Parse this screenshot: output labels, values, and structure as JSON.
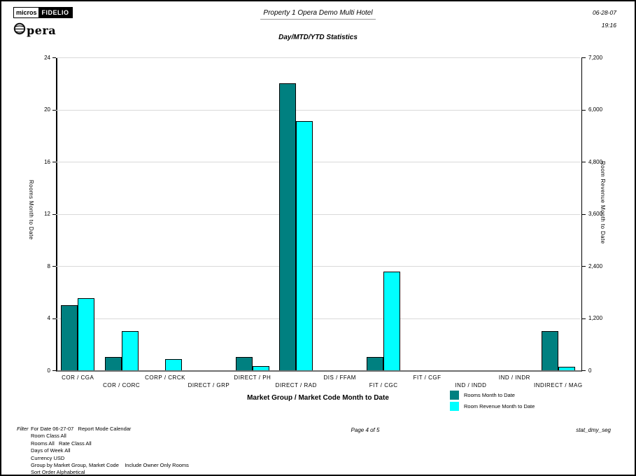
{
  "header": {
    "logo_micros": "micros",
    "logo_fidelio": "FIDELIO",
    "logo_opera": "pera",
    "title": "Property 1 Opera Demo Multi Hotel",
    "subtitle": "Day/MTD/YTD Statistics",
    "date": "06-28-07",
    "time": "19:16"
  },
  "chart_data": {
    "type": "bar",
    "title": "Day/MTD/YTD Statistics",
    "categories": [
      "COR / CGA",
      "COR / CORC",
      "CORP / CRCK",
      "DIRECT / GRP",
      "DIRECT / PH",
      "DIRECT / RAD",
      "DIS / FFAM",
      "FIT / CGC",
      "FIT / CGF",
      "IND / INDD",
      "IND / INDR",
      "INDIRECT / MAG"
    ],
    "series": [
      {
        "name": "Rooms Month to Date",
        "axis": "left",
        "color": "#008080",
        "values": [
          5,
          1,
          0,
          0,
          1,
          22,
          0,
          1,
          0,
          0,
          0,
          3
        ]
      },
      {
        "name": "Room Revenue Month to Date",
        "axis": "right",
        "color": "#00ffff",
        "values": [
          1660,
          900,
          260,
          0,
          90,
          5730,
          0,
          2270,
          0,
          0,
          0,
          80
        ]
      }
    ],
    "left_axis": {
      "label": "Rooms Month to Date",
      "min": 0,
      "max": 24,
      "ticks": [
        0,
        4,
        8,
        12,
        16,
        20,
        24
      ]
    },
    "right_axis": {
      "label": "Room Revenue Month to Date",
      "min": 0,
      "max": 7200,
      "ticks": [
        0,
        1200,
        2400,
        3600,
        4800,
        6000,
        7200
      ]
    },
    "xlabel": "Market Group / Market Code Month to Date",
    "grid": true,
    "legend_position": "bottom-right"
  },
  "footer": {
    "filter_label": "Filter",
    "filter_lines": [
      "For Date 06-27-07   Report Mode Calendar",
      "Room Class All",
      "Rooms All   Rate Class All",
      "Days of Week All",
      "Currency USD",
      "Group by Market Group, Market Code    Include Owner Only Rooms",
      "Sort Order Alphabetical"
    ],
    "page": "Page 4 of 5",
    "report_id": "stat_dmy_seg"
  }
}
